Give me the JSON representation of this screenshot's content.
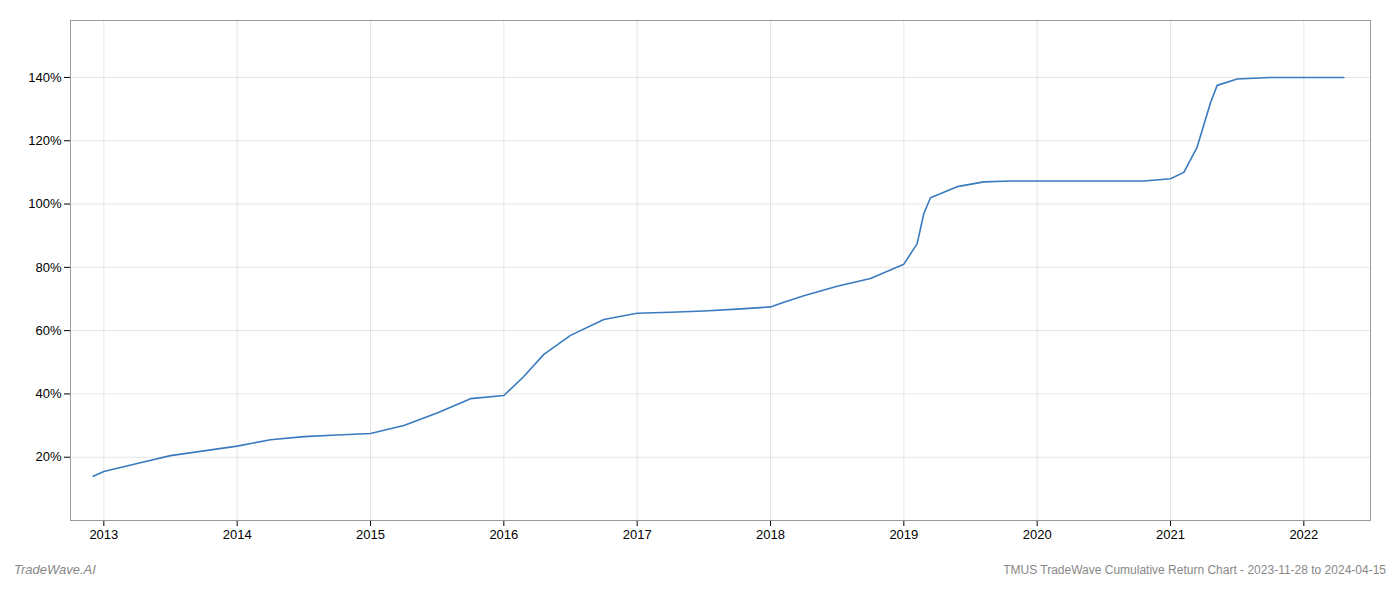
{
  "chart_data": {
    "type": "line",
    "title": "TMUS TradeWave Cumulative Return Chart - 2023-11-28 to 2024-04-15",
    "annotations": [
      "TradeWave.AI"
    ],
    "color": "#3a7abf",
    "grid": true,
    "x": [
      2012.92,
      2013.0,
      2013.25,
      2013.5,
      2013.75,
      2014.0,
      2014.25,
      2014.5,
      2014.75,
      2015.0,
      2015.25,
      2015.5,
      2015.75,
      2016.0,
      2016.15,
      2016.3,
      2016.5,
      2016.75,
      2017.0,
      2017.25,
      2017.5,
      2017.75,
      2018.0,
      2018.1,
      2018.25,
      2018.5,
      2018.75,
      2019.0,
      2019.1,
      2019.15,
      2019.2,
      2019.4,
      2019.6,
      2019.8,
      2020.0,
      2020.2,
      2020.4,
      2020.6,
      2020.8,
      2021.0,
      2021.1,
      2021.2,
      2021.3,
      2021.35,
      2021.5,
      2021.75,
      2022.0,
      2022.3
    ],
    "values": [
      0.14,
      0.155,
      0.18,
      0.205,
      0.22,
      0.235,
      0.255,
      0.265,
      0.27,
      0.275,
      0.3,
      0.34,
      0.385,
      0.395,
      0.455,
      0.525,
      0.585,
      0.635,
      0.655,
      0.658,
      0.662,
      0.668,
      0.675,
      0.69,
      0.71,
      0.74,
      0.765,
      0.81,
      0.875,
      0.97,
      1.02,
      1.055,
      1.07,
      1.073,
      1.073,
      1.073,
      1.073,
      1.073,
      1.073,
      1.08,
      1.1,
      1.18,
      1.32,
      1.375,
      1.395,
      1.4,
      1.4,
      1.4
    ],
    "xlim": [
      2012.75,
      2022.5
    ],
    "ylim": [
      0.0,
      1.58
    ],
    "xticks": [
      2013,
      2014,
      2015,
      2016,
      2017,
      2018,
      2019,
      2020,
      2021,
      2022
    ],
    "yticks": [
      {
        "value": 0.2,
        "label": "20%"
      },
      {
        "value": 0.4,
        "label": "40%"
      },
      {
        "value": 0.6,
        "label": "60%"
      },
      {
        "value": 0.8,
        "label": "80%"
      },
      {
        "value": 1.0,
        "label": "100%"
      },
      {
        "value": 1.2,
        "label": "120%"
      },
      {
        "value": 1.4,
        "label": "140%"
      }
    ]
  }
}
